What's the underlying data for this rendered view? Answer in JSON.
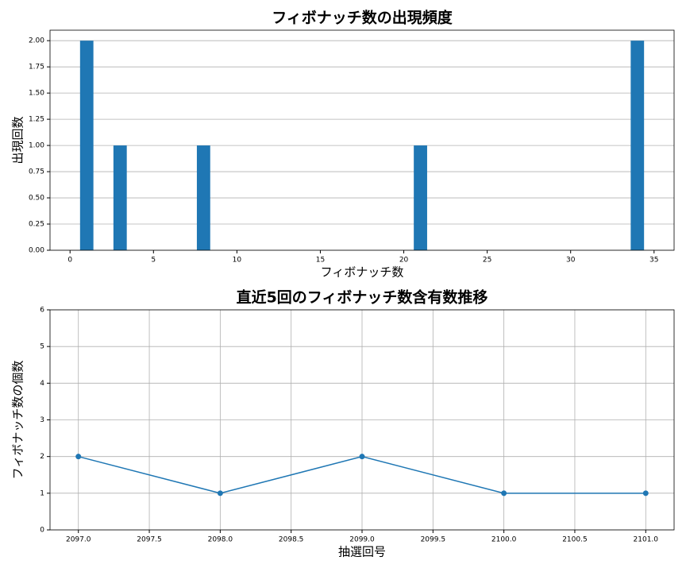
{
  "chart_data": [
    {
      "type": "bar",
      "title": "フィボナッチ数の出現頻度",
      "xlabel": "フィボナッチ数",
      "ylabel": "出現回数",
      "x": [
        1,
        3,
        8,
        21,
        34
      ],
      "values": [
        2,
        1,
        1,
        1,
        2
      ],
      "color": "#1f77b4",
      "xlim": [
        -1.2,
        36.2
      ],
      "xticks": [
        0,
        5,
        10,
        15,
        20,
        25,
        30,
        35
      ],
      "ylim": [
        0,
        2.1
      ],
      "yticks": [
        {
          "value": 0,
          "label": "0.00"
        },
        {
          "value": 0.25,
          "label": "0.25"
        },
        {
          "value": 0.5,
          "label": "0.50"
        },
        {
          "value": 0.75,
          "label": "0.75"
        },
        {
          "value": 1,
          "label": "1.00"
        },
        {
          "value": 1.25,
          "label": "1.25"
        },
        {
          "value": 1.5,
          "label": "1.50"
        },
        {
          "value": 1.75,
          "label": "1.75"
        },
        {
          "value": 2,
          "label": "2.00"
        }
      ],
      "grid": "y"
    },
    {
      "type": "line",
      "title": "直近5回のフィボナッチ数含有数推移",
      "xlabel": "抽選回号",
      "ylabel": "フィボナッチ数の個数",
      "x": [
        2097,
        2098,
        2099,
        2100,
        2101
      ],
      "values": [
        2,
        1,
        2,
        1,
        1
      ],
      "color": "#1f77b4",
      "xlim": [
        2096.8,
        2101.2
      ],
      "xticks": [
        {
          "value": 2097,
          "label": "2097.0"
        },
        {
          "value": 2097.5,
          "label": "2097.5"
        },
        {
          "value": 2098,
          "label": "2098.0"
        },
        {
          "value": 2098.5,
          "label": "2098.5"
        },
        {
          "value": 2099,
          "label": "2099.0"
        },
        {
          "value": 2099.5,
          "label": "2099.5"
        },
        {
          "value": 2100,
          "label": "2100.0"
        },
        {
          "value": 2100.5,
          "label": "2100.5"
        },
        {
          "value": 2101,
          "label": "2101.0"
        }
      ],
      "ylim": [
        0,
        6
      ],
      "yticks": [
        0,
        1,
        2,
        3,
        4,
        5,
        6
      ],
      "grid": "both"
    }
  ]
}
